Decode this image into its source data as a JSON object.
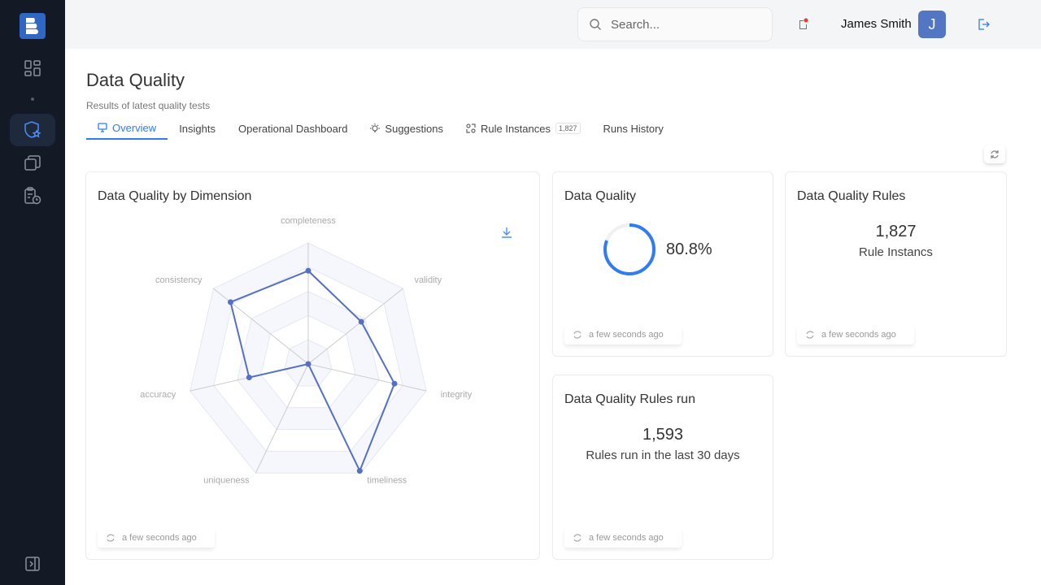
{
  "header": {
    "search_placeholder": "Search...",
    "user_name": "James Smith",
    "avatar_initial": "J"
  },
  "page": {
    "title": "Data Quality",
    "subtitle": "Results of latest quality tests"
  },
  "tabs": [
    {
      "label": "Overview",
      "icon": "monitor-icon"
    },
    {
      "label": "Insights"
    },
    {
      "label": "Operational Dashboard"
    },
    {
      "label": "Suggestions",
      "icon": "lightbulb-icon"
    },
    {
      "label": "Rule Instances",
      "icon": "rules-icon",
      "badge": "1,827"
    },
    {
      "label": "Runs History"
    }
  ],
  "cards": {
    "dimension": {
      "title": "Data Quality by Dimension",
      "updated": "a few seconds ago"
    },
    "quality": {
      "title": "Data Quality",
      "value": "80.8%",
      "percent": 80.8,
      "updated": "a few seconds ago"
    },
    "rules": {
      "title": "Data Quality Rules",
      "value": "1,827",
      "label": "Rule Instancs",
      "updated": "a few seconds ago"
    },
    "runs": {
      "title": "Data Quality Rules run",
      "value": "1,593",
      "label": "Rules run in the last 30 days",
      "updated": "a few seconds ago"
    }
  },
  "colors": {
    "accent": "#2f7cf6",
    "series": "#5470c6",
    "sidebar": "#131a26"
  },
  "chart_data": {
    "type": "radar",
    "categories": [
      "completeness",
      "validity",
      "integrity",
      "timeliness",
      "uniqueness",
      "accuracy",
      "consistency"
    ],
    "values": [
      77,
      56,
      73,
      98,
      0,
      50,
      82
    ],
    "range": [
      0,
      100
    ],
    "rings": 5
  }
}
